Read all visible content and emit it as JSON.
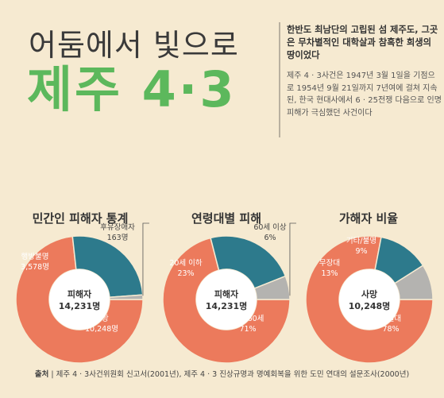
{
  "header": {
    "title_top": "어둠에서 빛으로",
    "title_main": "제주 4·3",
    "intro_lead": "한반도 최남단의 고립된 섬 제주도, 그곳은 무차별적인 대학살과 참혹한 희생의 땅이었다",
    "intro_body": "제주 4 · 3사건은 1947년 3월 1일을 기점으로 1954년 9월 21일까지 7년여에 걸쳐 지속된, 한국 현대사에서 6 · 25전쟁 다음으로 인명피해가 극심했던 사건이다"
  },
  "colors": {
    "salmon": "#ec7a5c",
    "teal": "#2d7a8c",
    "gray": "#b4b3b0",
    "green": "#5cb85c"
  },
  "chart_data": [
    {
      "type": "pie",
      "title": "민간인 피해자 통계",
      "center_label": "피해자",
      "center_value": "14,231명",
      "slices": [
        {
          "label": "사망",
          "value_text": "10,248명",
          "value": 10248,
          "color": "#ec7a5c"
        },
        {
          "label": "행방불명",
          "value_text": "3,578명",
          "value": 3578,
          "color": "#2d7a8c"
        },
        {
          "label": "후유장애자",
          "value_text": "163명",
          "value": 163,
          "color": "#b4b3b0"
        }
      ]
    },
    {
      "type": "pie",
      "title": "연령대별 피해",
      "center_label": "피해자",
      "center_value": "14,231명",
      "slices": [
        {
          "label": "21~60세",
          "value_text": "71%",
          "value": 71,
          "color": "#ec7a5c"
        },
        {
          "label": "20세 이하",
          "value_text": "23%",
          "value": 23,
          "color": "#2d7a8c"
        },
        {
          "label": "60세 이상",
          "value_text": "6%",
          "value": 6,
          "color": "#b4b3b0"
        }
      ]
    },
    {
      "type": "pie",
      "title": "가해자 비율",
      "center_label": "사망",
      "center_value": "10,248명",
      "slices": [
        {
          "label": "토벌대",
          "value_text": "78%",
          "value": 78,
          "color": "#ec7a5c"
        },
        {
          "label": "무장대",
          "value_text": "13%",
          "value": 13,
          "color": "#2d7a8c"
        },
        {
          "label": "기타/불명",
          "value_text": "9%",
          "value": 9,
          "color": "#b4b3b0"
        }
      ]
    }
  ],
  "source": {
    "label": "출처",
    "text": "제주 4 · 3사건위원회 신고서(2001년), 제주 4 · 3 진상규명과 명예회복을 위한 도민 연대의 설문조사(2000년)"
  }
}
